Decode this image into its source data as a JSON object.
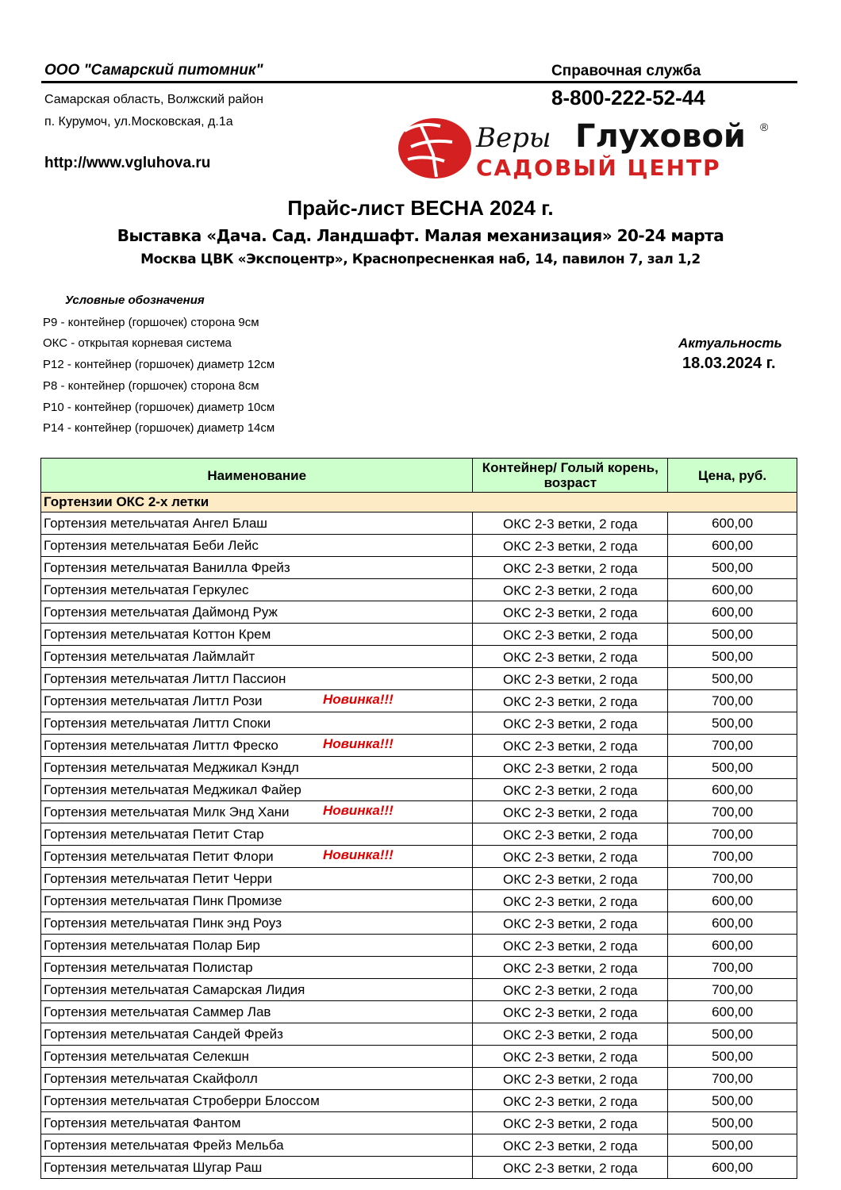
{
  "header": {
    "company": "ООО \"Самарский питомник\"",
    "address_line1": "Самарская область, Волжский район",
    "address_line2": "п. Курумоч, ул.Московская, д.1а",
    "url": "http://www.vgluhova.ru",
    "help_label": "Справочная служба",
    "phone": "8-800-222-52-44",
    "logo": {
      "script_text": "Веры",
      "name": "Глуховой",
      "tagline": "САДОВЫЙ ЦЕНТР",
      "registered": "®"
    }
  },
  "title": "Прайс-лист ВЕСНА 2024 г.",
  "subtitle1": "Выставка «Дача. Сад. Ландшафт. Малая механизация» 20-24 марта",
  "subtitle2": "Москва  ЦВК «Экспоцентр», Краснопресненкая наб, 14, павилон 7, зал 1,2",
  "legend": {
    "title": "Условные обозначения",
    "items": [
      "Р9 - контейнер (горшочек) сторона 9см",
      "ОКС - открытая корневая система",
      "Р12 - контейнер (горшочек) диаметр 12см",
      "Р8 - контейнер (горшочек) сторона 8см",
      "Р10 - контейнер (горшочек) диаметр 10см",
      "Р14 - контейнер (горшочек) диаметр 14см"
    ]
  },
  "actuality": {
    "label": "Актуальность",
    "date": "18.03.2024 г."
  },
  "table": {
    "columns": [
      "Наименование",
      "Контейнер/ Голый корень, возраст",
      "Цена, руб."
    ],
    "section": "Гортензии ОКС 2-х летки",
    "rows": [
      {
        "name": "Гортензия метельчатая Ангел Блаш",
        "badge": "",
        "type": "ОКС 2-3 ветки, 2 года",
        "price": "600,00"
      },
      {
        "name": "Гортензия метельчатая Беби Лейс",
        "badge": "",
        "type": "ОКС 2-3 ветки, 2 года",
        "price": "600,00"
      },
      {
        "name": "Гортензия метельчатая Ванилла Фрейз",
        "badge": "",
        "type": "ОКС 2-3 ветки, 2 года",
        "price": "500,00"
      },
      {
        "name": "Гортензия метельчатая Геркулес",
        "badge": "",
        "type": "ОКС 2-3 ветки, 2 года",
        "price": "600,00"
      },
      {
        "name": "Гортензия метельчатая Даймонд Руж",
        "badge": "",
        "type": "ОКС 2-3 ветки, 2 года",
        "price": "600,00"
      },
      {
        "name": "Гортензия метельчатая Коттон Крем",
        "badge": "",
        "type": "ОКС 2-3 ветки, 2 года",
        "price": "500,00"
      },
      {
        "name": "Гортензия метельчатая Лаймлайт",
        "badge": "",
        "type": "ОКС 2-3 ветки, 2 года",
        "price": "500,00"
      },
      {
        "name": "Гортензия метельчатая Литтл Пассион",
        "badge": "",
        "type": "ОКС 2-3 ветки, 2 года",
        "price": "500,00"
      },
      {
        "name": "Гортензия метельчатая Литтл Рози",
        "badge": "Новинка!!!",
        "type": "ОКС 2-3 ветки, 2 года",
        "price": "700,00"
      },
      {
        "name": "Гортензия метельчатая Литтл Споки",
        "badge": "",
        "type": "ОКС 2-3 ветки, 2 года",
        "price": "500,00"
      },
      {
        "name": "Гортензия метельчатая Литтл Фреско",
        "badge": "Новинка!!!",
        "type": "ОКС 2-3 ветки, 2 года",
        "price": "700,00"
      },
      {
        "name": "Гортензия метельчатая Меджикал Кэндл",
        "badge": "",
        "type": "ОКС 2-3 ветки, 2 года",
        "price": "500,00"
      },
      {
        "name": "Гортензия метельчатая Меджикал Файер",
        "badge": "",
        "type": "ОКС 2-3 ветки, 2 года",
        "price": "600,00"
      },
      {
        "name": "Гортензия метельчатая Милк Энд Хани",
        "badge": "Новинка!!!",
        "type": "ОКС 2-3 ветки, 2 года",
        "price": "700,00"
      },
      {
        "name": "Гортензия метельчатая Петит Стар",
        "badge": "",
        "type": "ОКС 2-3 ветки, 2 года",
        "price": "700,00"
      },
      {
        "name": "Гортензия метельчатая Петит Флори",
        "badge": "Новинка!!!",
        "type": "ОКС 2-3 ветки, 2 года",
        "price": "700,00"
      },
      {
        "name": "Гортензия метельчатая Петит Черри",
        "badge": "",
        "type": "ОКС 2-3 ветки, 2 года",
        "price": "700,00"
      },
      {
        "name": "Гортензия метельчатая Пинк Промизе",
        "badge": "",
        "type": "ОКС 2-3 ветки, 2 года",
        "price": "600,00"
      },
      {
        "name": "Гортензия метельчатая Пинк энд Роуз",
        "badge": "",
        "type": "ОКС 2-3 ветки, 2 года",
        "price": "600,00"
      },
      {
        "name": "Гортензия метельчатая Полар Бир",
        "badge": "",
        "type": "ОКС 2-3 ветки, 2 года",
        "price": "600,00"
      },
      {
        "name": "Гортензия метельчатая Полистар",
        "badge": "",
        "type": "ОКС 2-3 ветки, 2 года",
        "price": "700,00"
      },
      {
        "name": "Гортензия метельчатая Самарская Лидия",
        "badge": "",
        "type": "ОКС 2-3 ветки, 2 года",
        "price": "700,00"
      },
      {
        "name": "Гортензия метельчатая Саммер Лав",
        "badge": "",
        "type": "ОКС 2-3 ветки, 2 года",
        "price": "600,00"
      },
      {
        "name": "Гортензия метельчатая Сандей Фрейз",
        "badge": "",
        "type": "ОКС 2-3 ветки, 2 года",
        "price": "500,00"
      },
      {
        "name": "Гортензия метельчатая Селекшн",
        "badge": "",
        "type": "ОКС 2-3 ветки, 2 года",
        "price": "500,00"
      },
      {
        "name": "Гортензия метельчатая Скайфолл",
        "badge": "",
        "type": "ОКС 2-3 ветки, 2 года",
        "price": "700,00"
      },
      {
        "name": "Гортензия метельчатая Строберри Блоссом",
        "badge": "",
        "type": "ОКС 2-3 ветки, 2 года",
        "price": "500,00"
      },
      {
        "name": "Гортензия метельчатая Фантом",
        "badge": "",
        "type": "ОКС 2-3 ветки, 2 года",
        "price": "500,00"
      },
      {
        "name": "Гортензия метельчатая Фрейз Мельба",
        "badge": "",
        "type": "ОКС 2-3 ветки, 2 года",
        "price": "500,00"
      },
      {
        "name": "Гортензия метельчатая Шугар Раш",
        "badge": "",
        "type": "ОКС 2-3 ветки, 2 года",
        "price": "600,00"
      }
    ]
  },
  "colors": {
    "header_bg": "#ccffcc",
    "section_bg": "#fdebc6",
    "badge": "#e00000",
    "logo_red": "#d42020"
  }
}
